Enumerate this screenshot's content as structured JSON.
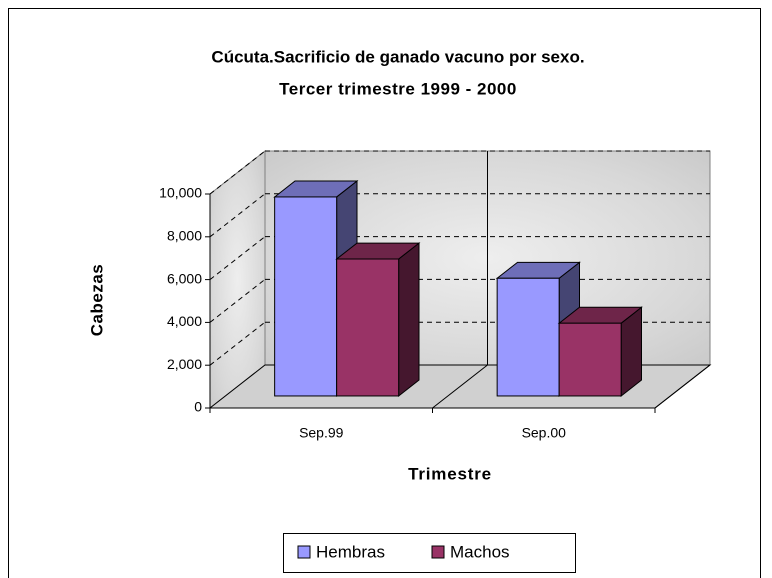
{
  "chart_data": {
    "type": "bar3d",
    "title": "Cúcuta.Sacrificio de ganado vacuno por sexo.",
    "subtitle": "Tercer trimestre 1999 - 2000",
    "y_label": "Cabezas",
    "x_label": "Trimestre",
    "categories": [
      "Sep.99",
      "Sep.00"
    ],
    "series": [
      {
        "name": "Hembras",
        "color": "#9999ff",
        "values": [
          9300,
          5500
        ]
      },
      {
        "name": "Machos",
        "color": "#993366",
        "values": [
          6400,
          3400
        ]
      }
    ],
    "ylim": [
      0,
      10000
    ],
    "yticks": [
      {
        "value": 0,
        "label": "0"
      },
      {
        "value": 2000,
        "label": "2,000"
      },
      {
        "value": 4000,
        "label": "4,000"
      },
      {
        "value": 6000,
        "label": "6,000"
      },
      {
        "value": 8000,
        "label": "8,000"
      },
      {
        "value": 10000,
        "label": "10,000"
      }
    ],
    "grid": true,
    "legend": "bottom"
  }
}
